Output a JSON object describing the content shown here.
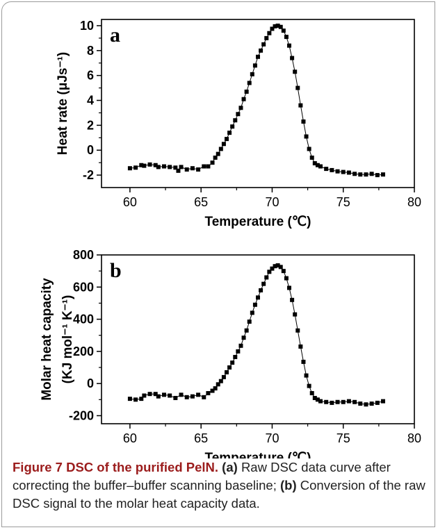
{
  "chart_data": [
    {
      "type": "scatter",
      "panel_label": "a",
      "xlabel": "Temperature (℃)",
      "ylabel": "Heat rate (μJs⁻¹)",
      "xlim": [
        58,
        80
      ],
      "ylim": [
        -3,
        10.5
      ],
      "xticks": [
        60,
        65,
        70,
        75,
        80
      ],
      "yticks": [
        -2,
        0,
        2,
        4,
        6,
        8,
        10
      ],
      "series": [
        {
          "x": [
            60.0,
            60.4,
            60.8,
            61.0,
            61.4,
            61.8,
            62.0,
            62.4,
            62.8,
            63.2,
            63.4,
            63.6,
            64.0,
            64.4,
            64.8,
            65.2,
            65.5,
            65.8,
            66.0,
            66.2,
            66.4,
            66.6,
            66.8,
            67.0,
            67.2,
            67.4,
            67.6,
            67.8,
            68.0,
            68.2,
            68.4,
            68.6,
            68.8,
            69.0,
            69.2,
            69.4,
            69.6,
            69.8,
            70.0,
            70.2,
            70.4,
            70.6,
            70.8,
            71.0,
            71.2,
            71.4,
            71.6,
            71.8,
            72.0,
            72.2,
            72.4,
            72.6,
            72.8,
            73.0,
            73.2,
            73.4,
            73.8,
            74.2,
            74.6,
            75.0,
            75.4,
            75.8,
            76.2,
            76.6,
            77.0,
            77.4,
            77.8
          ],
          "y": [
            -1.45,
            -1.4,
            -1.2,
            -1.25,
            -1.15,
            -1.2,
            -1.35,
            -1.3,
            -1.35,
            -1.4,
            -1.65,
            -1.35,
            -1.55,
            -1.45,
            -1.55,
            -1.3,
            -1.3,
            -1.0,
            -0.6,
            -0.3,
            0.1,
            0.5,
            0.9,
            1.4,
            1.9,
            2.4,
            2.9,
            3.4,
            4.1,
            4.7,
            5.4,
            6.1,
            6.8,
            7.5,
            8.0,
            8.5,
            9.0,
            9.4,
            9.75,
            9.95,
            10.0,
            9.9,
            9.6,
            9.1,
            8.4,
            7.4,
            6.3,
            5.0,
            3.6,
            2.3,
            1.1,
            0.1,
            -0.6,
            -1.05,
            -1.2,
            -1.3,
            -1.5,
            -1.6,
            -1.7,
            -1.75,
            -1.8,
            -1.9,
            -1.95,
            -1.95,
            -1.9,
            -2.0,
            -1.95
          ]
        }
      ]
    },
    {
      "type": "scatter",
      "panel_label": "b",
      "xlabel": "Temperature (℃)",
      "ylabel_line1": "Molar heat capacity",
      "ylabel_line2": "(KJ mol⁻¹ K⁻¹)",
      "xlim": [
        58,
        80
      ],
      "ylim": [
        -250,
        800
      ],
      "xticks": [
        60,
        65,
        70,
        75,
        80
      ],
      "yticks": [
        -200,
        0,
        200,
        400,
        600,
        800
      ],
      "series": [
        {
          "x": [
            60.0,
            60.4,
            60.8,
            61.0,
            61.4,
            61.8,
            62.0,
            62.4,
            62.8,
            63.2,
            63.6,
            64.0,
            64.4,
            64.8,
            65.2,
            65.5,
            65.8,
            66.0,
            66.2,
            66.4,
            66.6,
            66.8,
            67.0,
            67.2,
            67.4,
            67.6,
            67.8,
            68.0,
            68.2,
            68.4,
            68.6,
            68.8,
            69.0,
            69.2,
            69.4,
            69.6,
            69.8,
            70.0,
            70.2,
            70.4,
            70.6,
            70.8,
            71.0,
            71.2,
            71.4,
            71.6,
            71.8,
            72.0,
            72.2,
            72.4,
            72.6,
            72.8,
            73.0,
            73.2,
            73.4,
            73.8,
            74.2,
            74.6,
            75.0,
            75.4,
            75.8,
            76.2,
            76.6,
            77.0,
            77.4,
            77.8
          ],
          "y": [
            -95,
            -100,
            -95,
            -75,
            -65,
            -65,
            -80,
            -70,
            -75,
            -90,
            -70,
            -85,
            -80,
            -70,
            -85,
            -60,
            -45,
            -30,
            -5,
            15,
            40,
            70,
            100,
            130,
            165,
            200,
            235,
            285,
            330,
            385,
            440,
            490,
            535,
            580,
            620,
            660,
            695,
            715,
            730,
            735,
            725,
            700,
            655,
            595,
            520,
            430,
            330,
            230,
            135,
            50,
            -15,
            -60,
            -90,
            -100,
            -110,
            -115,
            -120,
            -115,
            -115,
            -110,
            -115,
            -125,
            -130,
            -125,
            -120,
            -110
          ]
        }
      ]
    }
  ],
  "caption": {
    "figure": "Figure 7 DSC of the purified PelN.",
    "tag_a": "(a)",
    "text_a": "Raw DSC data curve after correcting the buffer–buffer scanning baseline;",
    "tag_b": "(b)",
    "text_b": "Conversion of the raw DSC signal to the molar heat capacity data."
  }
}
